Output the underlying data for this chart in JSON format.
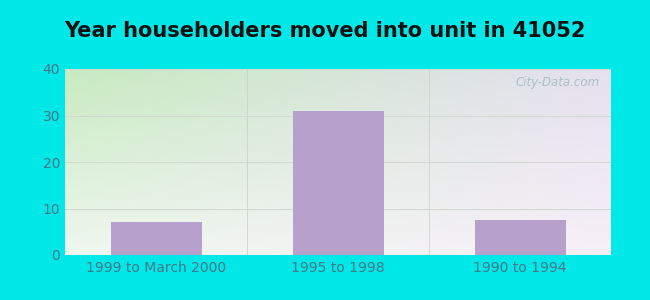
{
  "title": "Year householders moved into unit in 41052",
  "categories": [
    "1999 to March 2000",
    "1995 to 1998",
    "1990 to 1994"
  ],
  "values": [
    7,
    31,
    7.5
  ],
  "bar_color": "#b8a0cc",
  "ylim": [
    0,
    40
  ],
  "yticks": [
    0,
    10,
    20,
    30,
    40
  ],
  "title_fontsize": 15,
  "tick_fontsize": 10,
  "outer_bg_color": "#00e8e8",
  "plot_bg_top_left": "#f0f8f0",
  "plot_bg_top_right": "#f8f0f8",
  "plot_bg_bottom_left": "#c8e8c0",
  "plot_bg_bottom_right": "#e8e0f0",
  "grid_color": "#d0d8d0",
  "watermark_text": "City-Data.com",
  "watermark_color": "#a0b8c0"
}
